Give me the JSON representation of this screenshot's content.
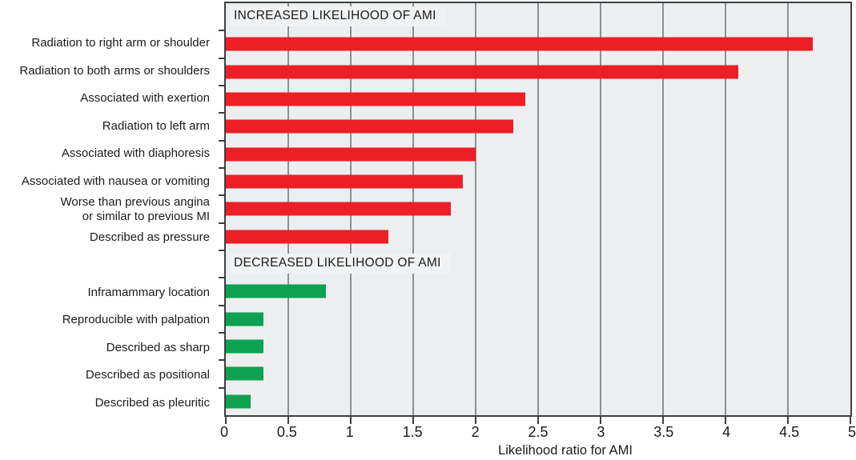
{
  "chart_data": {
    "type": "bar",
    "orientation": "horizontal",
    "title": "",
    "xlabel": "Likelihood ratio for AMI",
    "ylabel": "",
    "xlim": [
      0,
      5
    ],
    "x_ticks": [
      0,
      0.5,
      1,
      1.5,
      2,
      2.5,
      3,
      3.5,
      4,
      4.5,
      5
    ],
    "x_tick_labels": [
      "0",
      "0.5",
      "1",
      "1.5",
      "2",
      "2.5",
      "3",
      "3.5",
      "4",
      "4.5",
      "5"
    ],
    "grid": true,
    "legend": false,
    "colors": {
      "increased_bar": "#ec1f27",
      "decreased_bar": "#0da150",
      "plot_background": "#edeef0",
      "header_background": "#f1f2f3",
      "gridline": "#8d9093",
      "axis": "#3e3f41",
      "text": "#1b1b1b"
    },
    "sections": [
      {
        "header": "INCREASED LIKELIHOOD OF AMI",
        "bar_color": "#ec1f27",
        "items": [
          {
            "label": "Radiation to right arm or shoulder",
            "value": 4.7
          },
          {
            "label": "Radiation to both arms or shoulders",
            "value": 4.1
          },
          {
            "label": "Associated with exertion",
            "value": 2.4
          },
          {
            "label": "Radiation to left arm",
            "value": 2.3
          },
          {
            "label": "Associated with diaphoresis",
            "value": 2.0
          },
          {
            "label": "Associated with nausea or vomiting",
            "value": 1.9
          },
          {
            "label": "Worse than previous angina\nor similar to previous MI",
            "value": 1.8
          },
          {
            "label": "Described as pressure",
            "value": 1.3
          }
        ]
      },
      {
        "header": "DECREASED LIKELIHOOD OF AMI",
        "bar_color": "#0da150",
        "items": [
          {
            "label": "Inframammary location",
            "value": 0.8
          },
          {
            "label": "Reproducible with palpation",
            "value": 0.3
          },
          {
            "label": "Described as sharp",
            "value": 0.3
          },
          {
            "label": "Described as positional",
            "value": 0.3
          },
          {
            "label": "Described as pleuritic",
            "value": 0.2
          }
        ]
      }
    ]
  }
}
